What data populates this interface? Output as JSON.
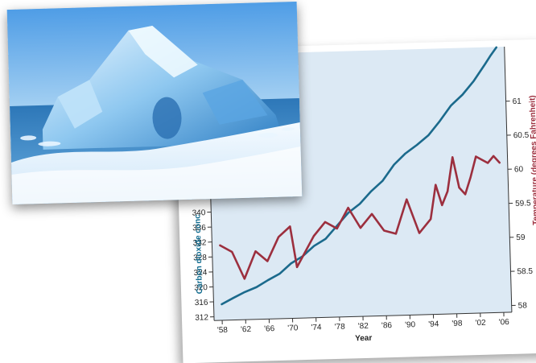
{
  "photo": {
    "subject": "iceberg-photo"
  },
  "chart_data": {
    "type": "line",
    "title": "",
    "xlabel": "Year",
    "ylabel_left": "Carbon dioxide conc",
    "ylabel_right": "Temperature (degrees Fahrenheit)",
    "x_ticks": [
      "'58",
      "'62",
      "'66",
      "'70",
      "'74",
      "'78",
      "'82",
      "'86",
      "'90",
      "'94",
      "'98",
      "'02",
      "'06"
    ],
    "x_range": [
      1958,
      2006
    ],
    "y_left_range": [
      311,
      382
    ],
    "y_left_ticks": [
      312,
      316,
      320,
      324,
      328,
      332,
      336,
      340
    ],
    "y_right_range": [
      57.9,
      61.8
    ],
    "y_right_ticks": [
      "58",
      "58.5",
      "59",
      "59.5",
      "60",
      "60.5",
      "61"
    ],
    "series": [
      {
        "axis": "left",
        "color": "#1b6a8c",
        "x": [
          1958,
          1960,
          1962,
          1964,
          1966,
          1968,
          1970,
          1972,
          1974,
          1976,
          1978,
          1980,
          1982,
          1984,
          1986,
          1988,
          1990,
          1992,
          1994,
          1996,
          1998,
          2000,
          2002,
          2004,
          2005,
          2006
        ],
        "y": [
          315.3,
          316.9,
          318.4,
          319.6,
          321.4,
          323.0,
          325.7,
          327.5,
          330.2,
          332.0,
          335.4,
          338.8,
          341.1,
          344.4,
          347.1,
          351.3,
          354.2,
          356.4,
          358.9,
          362.6,
          366.7,
          369.5,
          373.1,
          377.5,
          379.8,
          381.9
        ]
      },
      {
        "axis": "right",
        "color": "#9c2f3e",
        "x": [
          1958,
          1960,
          1962,
          1964,
          1966,
          1968,
          1970,
          1971,
          1972,
          1974,
          1976,
          1978,
          1980,
          1982,
          1984,
          1986,
          1988,
          1990,
          1992,
          1994,
          1995,
          1996,
          1997,
          1998,
          1999,
          2000,
          2001,
          2002,
          2004,
          2005,
          2006
        ],
        "y": [
          59.0,
          58.9,
          58.5,
          58.9,
          58.75,
          59.1,
          59.25,
          58.65,
          58.8,
          59.1,
          59.3,
          59.2,
          59.5,
          59.2,
          59.4,
          59.15,
          59.1,
          59.6,
          59.1,
          59.3,
          59.8,
          59.5,
          59.7,
          60.2,
          59.75,
          59.65,
          59.9,
          60.2,
          60.1,
          60.2,
          60.1
        ]
      }
    ]
  }
}
